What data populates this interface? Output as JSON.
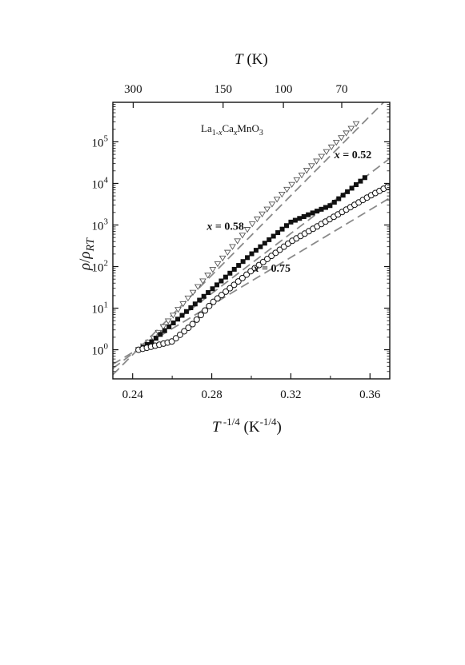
{
  "chart_data": {
    "type": "scatter",
    "title": "",
    "compound": {
      "base": "La",
      "sub1": "1-",
      "subx": "x",
      "mid": "Ca",
      "subx2": "x",
      "end": "MnO",
      "sub3": "3"
    },
    "xlabel": {
      "main": "T",
      "sup": " -1/4",
      "unit_open": " (K",
      "unit_sup": "-1/4",
      "unit_close": ")"
    },
    "ylabel": {
      "rho": "ρ",
      "slash": "/",
      "rho2": "ρ",
      "sub": "RT"
    },
    "top_xlabel": {
      "main": "T",
      "unit": " (K)"
    },
    "xlim": [
      0.23,
      0.37
    ],
    "ylim_log10": [
      -0.7,
      5.95
    ],
    "y_scale": "log",
    "x_ticks": [
      0.24,
      0.28,
      0.32,
      0.36
    ],
    "x_tick_labels": [
      "0.24",
      "0.28",
      "0.32",
      "0.36"
    ],
    "y_ticks_exp": [
      0,
      1,
      2,
      3,
      4,
      5
    ],
    "y_tick_base": "10",
    "y_tick_exps": [
      "0",
      "1",
      "2",
      "3",
      "4",
      "5"
    ],
    "top_ticks_T": [
      300,
      150,
      100,
      70
    ],
    "top_tick_labels": [
      "300",
      "150",
      "100",
      "70"
    ],
    "series": [
      {
        "name": "x = 0.52",
        "marker": "triangle-down-open",
        "x_start": 0.243,
        "x_end": 0.3545,
        "step": 0.0025,
        "x": [
          0.243,
          0.25,
          0.26,
          0.27,
          0.28,
          0.3,
          0.32,
          0.34,
          0.3545
        ],
        "log10_y": [
          0.0,
          0.25,
          0.8,
          1.35,
          1.9,
          3.0,
          3.95,
          4.85,
          5.5
        ]
      },
      {
        "name": "x = 0.58",
        "marker": "square-filled",
        "x_start": 0.243,
        "x_end": 0.359,
        "step": 0.0022,
        "x": [
          0.243,
          0.25,
          0.26,
          0.28,
          0.3,
          0.32,
          0.34,
          0.359
        ],
        "log10_y": [
          0.0,
          0.2,
          0.62,
          1.45,
          2.3,
          3.07,
          3.47,
          4.2
        ]
      },
      {
        "name": "x = 0.75",
        "marker": "circle-open",
        "x_start": 0.243,
        "x_end": 0.37,
        "step": 0.0021,
        "x": [
          0.243,
          0.25,
          0.26,
          0.27,
          0.28,
          0.3,
          0.32,
          0.34,
          0.36,
          0.37
        ],
        "log10_y": [
          0.0,
          0.08,
          0.2,
          0.6,
          1.12,
          1.9,
          2.6,
          3.15,
          3.7,
          3.95
        ]
      }
    ],
    "fit_lines": [
      {
        "x": [
          0.23,
          0.37
        ],
        "log10_y": [
          -0.6,
          6.1
        ]
      },
      {
        "x": [
          0.23,
          0.37
        ],
        "log10_y": [
          -0.45,
          4.6
        ]
      },
      {
        "x": [
          0.23,
          0.37
        ],
        "log10_y": [
          -0.35,
          3.65
        ]
      }
    ],
    "annotations": [
      {
        "label_prefix": "x",
        "label_rest": " = 0.52",
        "at_x": 0.342,
        "at_log10_y": 4.6
      },
      {
        "label_prefix": "x",
        "label_rest": " = 0.58",
        "at_x": 0.2775,
        "at_log10_y": 2.88
      },
      {
        "label_prefix": "x",
        "label_rest": " = 0.75",
        "at_x": 0.301,
        "at_log10_y": 1.88
      }
    ],
    "colors": {
      "fit": "#8a8a8a",
      "markers": "#111111",
      "triangle_stroke": "#555555"
    }
  }
}
